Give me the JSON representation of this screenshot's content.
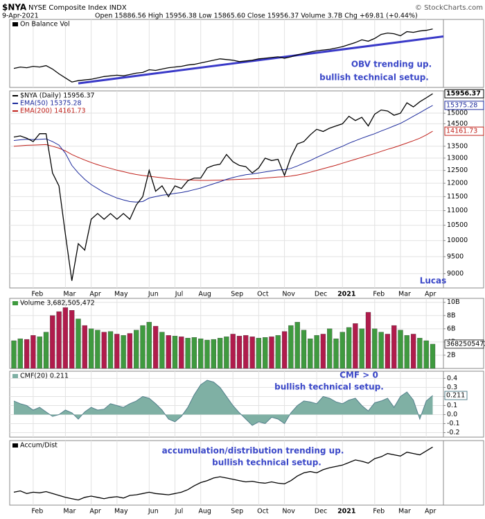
{
  "header": {
    "symbol": "$NYA",
    "name": "NYSE Composite Index INDX",
    "credit": "© StockCharts.com",
    "date": "9-Apr-2021",
    "quote": "Open 15886.56 High 15956.38 Low 15865.60 Close 15956.37 Volume 3.7B Chg +69.81 (+0.44%)"
  },
  "chart_data": [
    {
      "type": "line",
      "title": "On Balance Vol",
      "color": "#000000",
      "ylim": [
        0,
        100
      ],
      "values": [
        28,
        30,
        29,
        31,
        30,
        32,
        27,
        20,
        14,
        8,
        10,
        11,
        12,
        14,
        16,
        17,
        18,
        17,
        19,
        21,
        22,
        26,
        25,
        27,
        29,
        30,
        31,
        33,
        34,
        36,
        38,
        40,
        42,
        41,
        40,
        38,
        39,
        40,
        42,
        43,
        44,
        45,
        43,
        45,
        48,
        50,
        52,
        54,
        55,
        56,
        58,
        60,
        63,
        66,
        70,
        68,
        72,
        78,
        80,
        79,
        76,
        82,
        81,
        83,
        84,
        86
      ],
      "trendline": {
        "x": [
          10,
          67
        ],
        "values": [
          6,
          75
        ],
        "color": "#3a3ac8"
      },
      "annotations": [
        "OBV trending up.",
        "bullish technical setup."
      ]
    },
    {
      "type": "line",
      "log_scale": true,
      "grid": true,
      "ylim": [
        8600,
        16100
      ],
      "yticks": [
        9000,
        9500,
        10000,
        10500,
        11000,
        11500,
        12000,
        12500,
        13000,
        13500,
        14500,
        15000
      ],
      "categories": [
        null,
        null,
        null,
        "Feb",
        null,
        null,
        null,
        null,
        "Mar",
        null,
        null,
        null,
        "Apr",
        null,
        null,
        null,
        "May",
        null,
        null,
        null,
        null,
        "Jun",
        null,
        null,
        null,
        "Jul",
        null,
        null,
        null,
        "Aug",
        null,
        null,
        null,
        null,
        "Sep",
        null,
        null,
        null,
        "Oct",
        null,
        null,
        null,
        "Nov",
        null,
        null,
        null,
        null,
        "Dec",
        null,
        null,
        null,
        "2021",
        null,
        null,
        null,
        null,
        "Feb",
        null,
        null,
        null,
        "Mar",
        null,
        null,
        null,
        "Apr",
        null
      ],
      "series": [
        {
          "name": "$NYA (Daily) 15956.37",
          "color": "#000000",
          "values": [
            13900,
            13950,
            13850,
            13700,
            14050,
            14050,
            12400,
            11900,
            10200,
            8800,
            9900,
            9700,
            10700,
            10900,
            10700,
            10900,
            10700,
            10900,
            10700,
            11200,
            11500,
            12500,
            11700,
            11900,
            11500,
            11900,
            11800,
            12100,
            12200,
            12200,
            12600,
            12700,
            12750,
            13150,
            12850,
            12700,
            12650,
            12400,
            12600,
            13000,
            12900,
            12950,
            12300,
            13050,
            13600,
            13700,
            14000,
            14250,
            14150,
            14300,
            14400,
            14500,
            14850,
            14650,
            14800,
            14400,
            14950,
            15150,
            15100,
            14900,
            15000,
            15500,
            15300,
            15550,
            15750,
            15956.37
          ]
        },
        {
          "name": "EMA(50) 15375.28",
          "color": "#1c2a9c",
          "values": [
            13750,
            13780,
            13800,
            13790,
            13800,
            13820,
            13700,
            13550,
            13200,
            12700,
            12400,
            12150,
            11950,
            11800,
            11650,
            11550,
            11450,
            11380,
            11320,
            11300,
            11320,
            11450,
            11500,
            11550,
            11580,
            11620,
            11650,
            11700,
            11760,
            11820,
            11900,
            11980,
            12060,
            12150,
            12220,
            12280,
            12330,
            12360,
            12400,
            12440,
            12480,
            12520,
            12530,
            12580,
            12680,
            12790,
            12900,
            13030,
            13150,
            13270,
            13390,
            13500,
            13630,
            13740,
            13850,
            13950,
            14050,
            14170,
            14280,
            14400,
            14520,
            14680,
            14850,
            15020,
            15200,
            15375.28
          ]
        },
        {
          "name": "EMA(200) 14161.73",
          "color": "#c0201a",
          "values": [
            13500,
            13520,
            13540,
            13550,
            13560,
            13570,
            13500,
            13420,
            13300,
            13150,
            13030,
            12920,
            12820,
            12730,
            12650,
            12580,
            12510,
            12450,
            12390,
            12340,
            12300,
            12270,
            12240,
            12210,
            12180,
            12160,
            12140,
            12130,
            12120,
            12110,
            12110,
            12115,
            12120,
            12130,
            12140,
            12150,
            12160,
            12170,
            12180,
            12200,
            12220,
            12240,
            12250,
            12280,
            12320,
            12370,
            12430,
            12500,
            12570,
            12640,
            12710,
            12790,
            12870,
            12950,
            13030,
            13110,
            13190,
            13280,
            13370,
            13450,
            13540,
            13640,
            13740,
            13850,
            13990,
            14161.73
          ]
        }
      ],
      "annotations": [
        "Lucas"
      ]
    },
    {
      "type": "bar",
      "title": "Volume 3,682,505,472",
      "up_color": "#3f9a3f",
      "down_color": "#b01c4c",
      "grid": true,
      "ylim": [
        0,
        10600000000
      ],
      "yticks": [
        {
          "value": 2000000000,
          "label": "2B"
        },
        {
          "value": 4000000000,
          "label": "4B"
        },
        {
          "value": 6000000000,
          "label": "6B"
        },
        {
          "value": 8000000000,
          "label": "8B"
        },
        {
          "value": 10000000000,
          "label": "10B"
        }
      ],
      "values": [
        4200000000,
        4500000000,
        4400000000,
        5000000000,
        4800000000,
        5500000000,
        8000000000,
        8600000000,
        9200000000,
        8800000000,
        7500000000,
        6500000000,
        6000000000,
        5800000000,
        5500000000,
        5600000000,
        5200000000,
        5000000000,
        5300000000,
        5800000000,
        6500000000,
        7000000000,
        6400000000,
        5500000000,
        5000000000,
        4900000000,
        4800000000,
        4600000000,
        4700000000,
        4500000000,
        4300000000,
        4400000000,
        4600000000,
        4800000000,
        5200000000,
        4900000000,
        5000000000,
        4800000000,
        4600000000,
        4700000000,
        4800000000,
        5000000000,
        5600000000,
        6500000000,
        7000000000,
        5800000000,
        4500000000,
        5000000000,
        5200000000,
        6000000000,
        4500000000,
        5500000000,
        6200000000,
        6800000000,
        6000000000,
        8500000000,
        6000000000,
        5500000000,
        5200000000,
        6500000000,
        5800000000,
        5000000000,
        5200000000,
        4600000000,
        4200000000,
        3682505472
      ]
    },
    {
      "type": "area",
      "title": "CMF(20) 0.211",
      "color": "#7fb0a4",
      "line_color": "#54808c",
      "grid": true,
      "ylim": [
        -0.25,
        0.48
      ],
      "yticks": [
        -0.2,
        -0.1,
        {
          "value": 0,
          "label": "0.0"
        },
        0.1,
        0.2,
        0.3,
        0.4
      ],
      "values": [
        0.15,
        0.12,
        0.1,
        0.05,
        0.08,
        0.03,
        -0.02,
        0,
        0.05,
        0.02,
        -0.05,
        0.03,
        0.08,
        0.05,
        0.06,
        0.12,
        0.1,
        0.08,
        0.12,
        0.15,
        0.2,
        0.18,
        0.12,
        0.05,
        -0.05,
        -0.08,
        -0.02,
        0.08,
        0.22,
        0.33,
        0.38,
        0.36,
        0.3,
        0.2,
        0.1,
        0.02,
        -0.05,
        -0.12,
        -0.08,
        -0.1,
        -0.03,
        -0.05,
        -0.1,
        0.02,
        0.1,
        0.15,
        0.14,
        0.12,
        0.2,
        0.18,
        0.14,
        0.12,
        0.16,
        0.18,
        0.1,
        0.04,
        0.13,
        0.15,
        0.18,
        0.08,
        0.2,
        0.25,
        0.16,
        -0.05,
        0.15,
        0.211
      ],
      "annotations": [
        "CMF > 0",
        "bullish technical setup."
      ]
    },
    {
      "type": "line",
      "title": "Accum/Dist",
      "color": "#000000",
      "ylim": [
        0,
        100
      ],
      "categories": [
        null,
        null,
        null,
        "Feb",
        null,
        null,
        null,
        null,
        "Mar",
        null,
        null,
        null,
        "Apr",
        null,
        null,
        null,
        "May",
        null,
        null,
        null,
        null,
        "Jun",
        null,
        null,
        null,
        "Jul",
        null,
        null,
        null,
        "Aug",
        null,
        null,
        null,
        null,
        "Sep",
        null,
        null,
        null,
        "Oct",
        null,
        null,
        null,
        "Nov",
        null,
        null,
        null,
        null,
        "Dec",
        null,
        null,
        null,
        "2021",
        null,
        null,
        null,
        null,
        "Feb",
        null,
        null,
        null,
        "Mar",
        null,
        null,
        null,
        "Apr",
        null
      ],
      "values": [
        20,
        22,
        18,
        20,
        19,
        21,
        18,
        15,
        12,
        10,
        8,
        12,
        14,
        12,
        10,
        12,
        13,
        11,
        15,
        16,
        18,
        20,
        18,
        17,
        16,
        18,
        20,
        24,
        30,
        35,
        38,
        42,
        44,
        42,
        40,
        38,
        36,
        37,
        35,
        34,
        36,
        34,
        33,
        38,
        45,
        50,
        52,
        50,
        55,
        58,
        60,
        62,
        66,
        70,
        68,
        65,
        72,
        75,
        80,
        78,
        76,
        82,
        80,
        78,
        84,
        90
      ],
      "annotations": [
        "accumulation/distribution trending up.",
        "bullish technical setup."
      ]
    }
  ]
}
